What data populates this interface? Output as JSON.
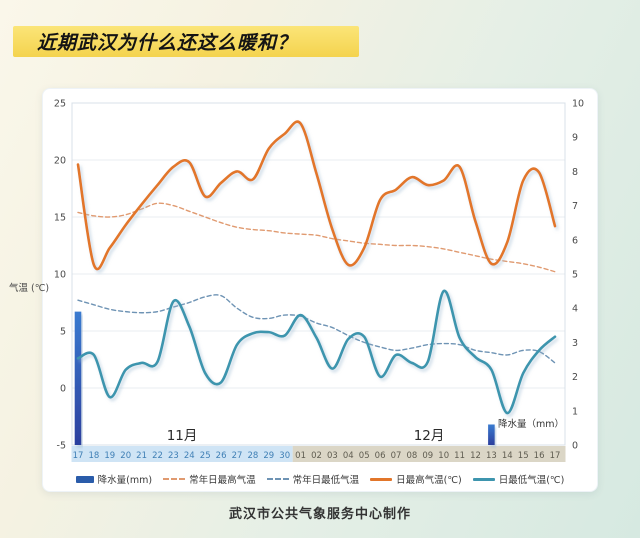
{
  "page": {
    "title": "近期武汉为什么还这么暖和？",
    "footer": "武汉市公共气象服务中心制作"
  },
  "chart_data": {
    "type": "line",
    "x_labels": [
      "17",
      "18",
      "19",
      "20",
      "21",
      "22",
      "23",
      "24",
      "25",
      "26",
      "27",
      "28",
      "29",
      "30",
      "01",
      "02",
      "03",
      "04",
      "05",
      "06",
      "07",
      "08",
      "09",
      "10",
      "11",
      "12",
      "13",
      "14",
      "15",
      "16",
      "17"
    ],
    "month_bands": [
      {
        "label": "11月",
        "start_index": 0,
        "end_index": 13,
        "band_color": "#cfe4f5",
        "label_color": "#3f7fb5"
      },
      {
        "label": "12月",
        "start_index": 14,
        "end_index": 30,
        "band_color": "#dbd6c6",
        "label_color": "#5f5c50"
      }
    ],
    "y_left": {
      "label": "气温 (℃)",
      "min": -5,
      "max": 25,
      "ticks": [
        25,
        20,
        15,
        10,
        5,
        0,
        -5
      ]
    },
    "y_right": {
      "label": "降水量（mm）",
      "min": 0,
      "max": 10,
      "ticks": [
        10,
        9,
        8,
        7,
        6,
        5,
        4,
        3,
        2,
        1,
        0
      ]
    },
    "grid": true,
    "legend_position": "bottom",
    "series": [
      {
        "id": "precip",
        "name": "降水量(mm)",
        "type": "bar",
        "axis": "right",
        "color": "#2a5caa",
        "bar_gradient": [
          "#3a7bd0",
          "#2c3f9e"
        ],
        "values": [
          3.9,
          null,
          null,
          null,
          null,
          null,
          null,
          null,
          null,
          null,
          null,
          null,
          null,
          null,
          null,
          null,
          null,
          null,
          null,
          null,
          null,
          null,
          null,
          null,
          null,
          null,
          0.6,
          null,
          null,
          null,
          null
        ]
      },
      {
        "id": "normal-max",
        "name": "常年日最高气温",
        "type": "line",
        "style": "dashed",
        "axis": "left",
        "color": "#e09a70",
        "values": [
          15.4,
          15.1,
          15.0,
          15.2,
          15.7,
          16.2,
          16.0,
          15.5,
          15.0,
          14.5,
          14.1,
          13.9,
          13.8,
          13.6,
          13.5,
          13.4,
          13.1,
          12.9,
          12.7,
          12.6,
          12.5,
          12.5,
          12.4,
          12.2,
          11.9,
          11.6,
          11.3,
          11.1,
          10.9,
          10.6,
          10.2
        ]
      },
      {
        "id": "normal-min",
        "name": "常年日最低气温",
        "type": "line",
        "style": "dashed",
        "axis": "left",
        "color": "#6e93b4",
        "values": [
          7.7,
          7.3,
          6.9,
          6.7,
          6.6,
          6.7,
          7.1,
          7.5,
          8.0,
          8.1,
          7.0,
          6.2,
          6.1,
          6.4,
          6.3,
          5.7,
          5.3,
          4.6,
          4.0,
          3.6,
          3.3,
          3.5,
          3.8,
          3.9,
          3.8,
          3.3,
          3.1,
          2.9,
          3.3,
          3.2,
          2.2
        ]
      },
      {
        "id": "daily-max",
        "name": "日最高气温(℃)",
        "type": "line",
        "style": "solid",
        "axis": "left",
        "color": "#e2762a",
        "values": [
          19.6,
          10.8,
          12.3,
          14.3,
          16.1,
          17.8,
          19.4,
          19.8,
          16.8,
          18.0,
          19.0,
          18.3,
          21.0,
          22.3,
          23.2,
          18.8,
          13.9,
          10.8,
          12.3,
          16.5,
          17.4,
          18.5,
          17.8,
          18.2,
          19.4,
          14.6,
          10.9,
          12.8,
          18.2,
          18.9,
          14.2
        ]
      },
      {
        "id": "daily-min",
        "name": "日最低气温(℃)",
        "type": "line",
        "style": "solid",
        "axis": "left",
        "color": "#3e95ae",
        "values": [
          2.6,
          2.9,
          -0.8,
          1.6,
          2.2,
          2.3,
          7.6,
          5.4,
          1.3,
          0.5,
          3.8,
          4.8,
          4.9,
          4.6,
          6.4,
          4.4,
          1.7,
          4.3,
          4.5,
          1.0,
          2.9,
          2.2,
          2.3,
          8.5,
          4.4,
          2.7,
          1.6,
          -2.2,
          1.3,
          3.3,
          4.5
        ]
      }
    ]
  }
}
